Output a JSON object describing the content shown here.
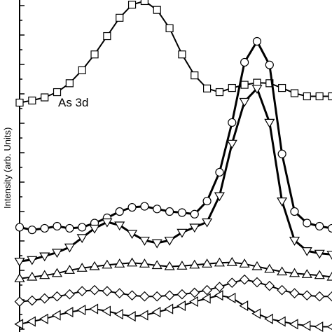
{
  "chart_data": {
    "type": "line",
    "title": "",
    "ylabel": "Intensity (arb. Units)",
    "annotation": "As 3d",
    "x": [
      0,
      4,
      8,
      12,
      16,
      20,
      24,
      28,
      32,
      36,
      40,
      44,
      48,
      52,
      56,
      60,
      64,
      68,
      72,
      76,
      80,
      84,
      88,
      92,
      96,
      100
    ],
    "series": [
      {
        "marker": "square",
        "values": [
          2.18,
          2.22,
          2.28,
          2.38,
          2.55,
          2.8,
          3.1,
          3.45,
          3.8,
          4.05,
          4.12,
          3.95,
          3.6,
          3.1,
          2.7,
          2.45,
          2.38,
          2.46,
          2.52,
          2.56,
          2.55,
          2.46,
          2.36,
          2.3,
          2.3,
          2.3
        ]
      },
      {
        "marker": "circle",
        "values": [
          -0.2,
          -0.25,
          -0.22,
          -0.18,
          -0.22,
          -0.2,
          -0.12,
          -0.02,
          0.1,
          0.18,
          0.2,
          0.15,
          0.1,
          0.08,
          0.05,
          0.3,
          0.85,
          1.8,
          2.95,
          3.35,
          2.9,
          1.2,
          0.1,
          -0.12,
          -0.18,
          -0.22
        ]
      },
      {
        "marker": "triangle-down",
        "values": [
          -0.85,
          -0.82,
          -0.75,
          -0.68,
          -0.58,
          -0.4,
          -0.22,
          -0.1,
          -0.16,
          -0.32,
          -0.45,
          -0.5,
          -0.45,
          -0.3,
          -0.2,
          -0.1,
          0.4,
          1.4,
          2.2,
          2.45,
          1.8,
          0.3,
          -0.45,
          -0.65,
          -0.7,
          -0.72
        ]
      },
      {
        "marker": "triangle-up",
        "values": [
          -1.18,
          -1.15,
          -1.12,
          -1.08,
          -1.02,
          -0.98,
          -0.95,
          -0.92,
          -0.9,
          -0.88,
          -0.9,
          -0.93,
          -0.95,
          -0.94,
          -0.92,
          -0.9,
          -0.88,
          -0.87,
          -0.9,
          -0.95,
          -1.0,
          -1.05,
          -1.08,
          -1.1,
          -1.12,
          -1.15
        ]
      },
      {
        "marker": "diamond",
        "values": [
          -1.62,
          -1.6,
          -1.56,
          -1.52,
          -1.48,
          -1.42,
          -1.4,
          -1.42,
          -1.46,
          -1.5,
          -1.52,
          -1.52,
          -1.5,
          -1.48,
          -1.45,
          -1.4,
          -1.34,
          -1.26,
          -1.2,
          -1.25,
          -1.32,
          -1.4,
          -1.46,
          -1.5,
          -1.52,
          -1.52
        ]
      },
      {
        "marker": "triangle-left",
        "values": [
          -2.05,
          -2.0,
          -1.95,
          -1.88,
          -1.82,
          -1.78,
          -1.76,
          -1.8,
          -1.86,
          -1.9,
          -1.88,
          -1.82,
          -1.76,
          -1.7,
          -1.62,
          -1.56,
          -1.5,
          -1.55,
          -1.7,
          -1.85,
          -1.95,
          -2.0,
          -2.05,
          -2.08,
          -2.1,
          -2.1
        ]
      }
    ],
    "xlim": [
      0,
      100
    ],
    "ylim": [
      -2.2,
      4.3
    ],
    "grid": false,
    "legend": "none"
  }
}
